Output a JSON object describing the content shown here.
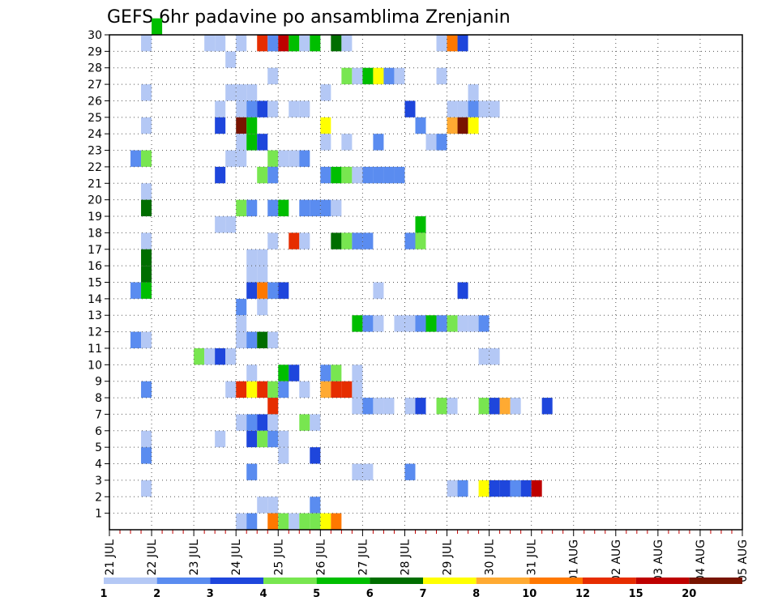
{
  "title": "GEFS 6hr padavine po ansamblima Zrenjanin",
  "chart_data": {
    "type": "heatmap",
    "title": "GEFS 6hr padavine po ansamblima Zrenjanin",
    "xlabel": "",
    "ylabel": "",
    "x_ticks": [
      "21 JUL",
      "22 JUL",
      "23 JUL",
      "24 JUL",
      "25 JUL",
      "26 JUL",
      "27 JUL",
      "28 JUL",
      "29 JUL",
      "30 JUL",
      "31 JUL",
      "01 AUG",
      "02 AUG",
      "03 AUG",
      "04 AUG",
      "05 AUG"
    ],
    "y_ticks": [
      "1",
      "2",
      "3",
      "4",
      "5",
      "6",
      "7",
      "8",
      "9",
      "10",
      "11",
      "12",
      "13",
      "14",
      "15",
      "16",
      "17",
      "18",
      "19",
      "20",
      "21",
      "22",
      "23",
      "24",
      "25",
      "26",
      "27",
      "28",
      "29",
      "30"
    ],
    "x_step": "6hr",
    "y_range": [
      0,
      30
    ],
    "grid": true,
    "colorbar": {
      "labels": [
        "1",
        "2",
        "3",
        "4",
        "5",
        "6",
        "7",
        "8",
        "10",
        "12",
        "15",
        "20"
      ],
      "colors": [
        "#b4c8f5",
        "#5a8cf0",
        "#1e46dc",
        "#78e650",
        "#00be00",
        "#006e00",
        "#ffff00",
        "#ffaa32",
        "#ff7800",
        "#e62d00",
        "#be0000",
        "#781400"
      ]
    },
    "cells": [
      [
        4,
        30,
        4
      ],
      [
        3,
        29,
        0
      ],
      [
        9,
        29,
        0
      ],
      [
        10,
        29,
        0
      ],
      [
        12,
        29,
        0
      ],
      [
        14,
        29,
        9
      ],
      [
        15,
        29,
        1
      ],
      [
        16,
        29,
        10
      ],
      [
        17,
        29,
        4
      ],
      [
        18,
        29,
        0
      ],
      [
        19,
        29,
        4
      ],
      [
        21,
        29,
        5
      ],
      [
        22,
        29,
        0
      ],
      [
        31,
        29,
        0
      ],
      [
        32,
        29,
        8
      ],
      [
        33,
        29,
        2
      ],
      [
        11,
        28,
        0
      ],
      [
        15,
        27,
        0
      ],
      [
        22,
        27,
        3
      ],
      [
        23,
        27,
        0
      ],
      [
        24,
        27,
        4
      ],
      [
        25,
        27,
        6
      ],
      [
        26,
        27,
        1
      ],
      [
        27,
        27,
        0
      ],
      [
        31,
        27,
        0
      ],
      [
        3,
        26,
        0
      ],
      [
        11,
        26,
        0
      ],
      [
        12,
        26,
        0
      ],
      [
        13,
        26,
        0
      ],
      [
        20,
        26,
        0
      ],
      [
        34,
        26,
        0
      ],
      [
        10,
        25,
        0
      ],
      [
        12,
        25,
        0
      ],
      [
        13,
        25,
        1
      ],
      [
        14,
        25,
        2
      ],
      [
        15,
        25,
        0
      ],
      [
        17,
        25,
        0
      ],
      [
        18,
        25,
        0
      ],
      [
        28,
        25,
        2
      ],
      [
        32,
        25,
        0
      ],
      [
        33,
        25,
        0
      ],
      [
        34,
        25,
        1
      ],
      [
        35,
        25,
        0
      ],
      [
        36,
        25,
        0
      ],
      [
        3,
        24,
        0
      ],
      [
        10,
        24,
        2
      ],
      [
        12,
        24,
        11
      ],
      [
        13,
        24,
        4
      ],
      [
        20,
        24,
        6
      ],
      [
        29,
        24,
        1
      ],
      [
        32,
        24,
        7
      ],
      [
        33,
        24,
        11
      ],
      [
        34,
        24,
        6
      ],
      [
        12,
        23,
        0
      ],
      [
        13,
        23,
        4
      ],
      [
        14,
        23,
        2
      ],
      [
        20,
        23,
        0
      ],
      [
        22,
        23,
        0
      ],
      [
        25,
        23,
        1
      ],
      [
        30,
        23,
        0
      ],
      [
        31,
        23,
        1
      ],
      [
        2,
        22,
        1
      ],
      [
        3,
        22,
        3
      ],
      [
        11,
        22,
        0
      ],
      [
        12,
        22,
        0
      ],
      [
        15,
        22,
        3
      ],
      [
        16,
        22,
        0
      ],
      [
        17,
        22,
        0
      ],
      [
        18,
        22,
        1
      ],
      [
        10,
        21,
        2
      ],
      [
        14,
        21,
        3
      ],
      [
        15,
        21,
        1
      ],
      [
        20,
        21,
        1
      ],
      [
        21,
        21,
        4
      ],
      [
        22,
        21,
        3
      ],
      [
        23,
        21,
        0
      ],
      [
        24,
        21,
        1
      ],
      [
        25,
        21,
        1
      ],
      [
        26,
        21,
        1
      ],
      [
        27,
        21,
        1
      ],
      [
        3,
        20,
        0
      ],
      [
        3,
        19,
        5
      ],
      [
        12,
        19,
        3
      ],
      [
        13,
        19,
        1
      ],
      [
        15,
        19,
        1
      ],
      [
        16,
        19,
        4
      ],
      [
        18,
        19,
        1
      ],
      [
        19,
        19,
        1
      ],
      [
        20,
        19,
        1
      ],
      [
        21,
        19,
        0
      ],
      [
        10,
        18,
        0
      ],
      [
        11,
        18,
        0
      ],
      [
        29,
        18,
        4
      ],
      [
        3,
        17,
        0
      ],
      [
        15,
        17,
        0
      ],
      [
        17,
        17,
        9
      ],
      [
        18,
        17,
        0
      ],
      [
        21,
        17,
        5
      ],
      [
        22,
        17,
        3
      ],
      [
        23,
        17,
        1
      ],
      [
        24,
        17,
        1
      ],
      [
        28,
        17,
        1
      ],
      [
        29,
        17,
        3
      ],
      [
        3,
        16,
        5
      ],
      [
        13,
        16,
        0
      ],
      [
        14,
        16,
        0
      ],
      [
        3,
        15,
        5
      ],
      [
        13,
        15,
        0
      ],
      [
        14,
        15,
        0
      ],
      [
        2,
        14,
        1
      ],
      [
        3,
        14,
        4
      ],
      [
        13,
        14,
        2
      ],
      [
        14,
        14,
        8
      ],
      [
        15,
        14,
        1
      ],
      [
        16,
        14,
        2
      ],
      [
        25,
        14,
        0
      ],
      [
        33,
        14,
        2
      ],
      [
        12,
        13,
        1
      ],
      [
        14,
        13,
        0
      ],
      [
        12,
        12,
        0
      ],
      [
        23,
        12,
        4
      ],
      [
        24,
        12,
        1
      ],
      [
        25,
        12,
        0
      ],
      [
        27,
        12,
        0
      ],
      [
        28,
        12,
        0
      ],
      [
        29,
        12,
        1
      ],
      [
        30,
        12,
        4
      ],
      [
        31,
        12,
        1
      ],
      [
        32,
        12,
        3
      ],
      [
        33,
        12,
        0
      ],
      [
        34,
        12,
        0
      ],
      [
        35,
        12,
        1
      ],
      [
        12,
        11,
        0
      ],
      [
        2,
        11,
        1
      ],
      [
        3,
        11,
        0
      ],
      [
        12,
        11,
        0
      ],
      [
        13,
        11,
        1
      ],
      [
        14,
        11,
        5
      ],
      [
        15,
        11,
        0
      ],
      [
        8,
        10,
        3
      ],
      [
        9,
        10,
        0
      ],
      [
        10,
        10,
        2
      ],
      [
        11,
        10,
        0
      ],
      [
        35,
        10,
        0
      ],
      [
        36,
        10,
        0
      ],
      [
        13,
        9,
        0
      ],
      [
        16,
        9,
        4
      ],
      [
        17,
        9,
        2
      ],
      [
        20,
        9,
        1
      ],
      [
        21,
        9,
        3
      ],
      [
        23,
        9,
        0
      ],
      [
        3,
        8,
        1
      ],
      [
        11,
        8,
        0
      ],
      [
        12,
        8,
        9
      ],
      [
        13,
        8,
        6
      ],
      [
        14,
        8,
        9
      ],
      [
        15,
        8,
        3
      ],
      [
        16,
        8,
        1
      ],
      [
        18,
        8,
        0
      ],
      [
        20,
        8,
        7
      ],
      [
        21,
        8,
        9
      ],
      [
        22,
        8,
        9
      ],
      [
        23,
        8,
        0
      ],
      [
        15,
        7,
        9
      ],
      [
        23,
        7,
        0
      ],
      [
        24,
        7,
        1
      ],
      [
        25,
        7,
        0
      ],
      [
        26,
        7,
        0
      ],
      [
        28,
        7,
        0
      ],
      [
        29,
        7,
        2
      ],
      [
        31,
        7,
        3
      ],
      [
        32,
        7,
        0
      ],
      [
        35,
        7,
        3
      ],
      [
        36,
        7,
        2
      ],
      [
        37,
        7,
        7
      ],
      [
        38,
        7,
        0
      ],
      [
        41,
        7,
        2
      ],
      [
        12,
        6,
        0
      ],
      [
        13,
        6,
        1
      ],
      [
        14,
        6,
        2
      ],
      [
        15,
        6,
        0
      ],
      [
        18,
        6,
        3
      ],
      [
        19,
        6,
        0
      ],
      [
        3,
        5,
        0
      ],
      [
        10,
        5,
        0
      ],
      [
        13,
        5,
        2
      ],
      [
        14,
        5,
        3
      ],
      [
        15,
        5,
        1
      ],
      [
        16,
        5,
        0
      ],
      [
        3,
        4,
        1
      ],
      [
        16,
        4,
        0
      ],
      [
        19,
        4,
        2
      ],
      [
        13,
        3,
        1
      ],
      [
        23,
        3,
        0
      ],
      [
        24,
        3,
        0
      ],
      [
        28,
        3,
        1
      ],
      [
        3,
        2,
        0
      ],
      [
        32,
        2,
        0
      ],
      [
        33,
        2,
        1
      ],
      [
        35,
        2,
        6
      ],
      [
        36,
        2,
        2
      ],
      [
        37,
        2,
        2
      ],
      [
        38,
        2,
        1
      ],
      [
        39,
        2,
        2
      ],
      [
        40,
        2,
        10
      ],
      [
        14,
        1,
        0
      ],
      [
        15,
        1,
        0
      ],
      [
        19,
        1,
        1
      ],
      [
        12,
        0,
        0
      ],
      [
        13,
        0,
        1
      ],
      [
        15,
        0,
        8
      ],
      [
        16,
        0,
        3
      ],
      [
        17,
        0,
        0
      ],
      [
        18,
        0,
        3
      ],
      [
        19,
        0,
        3
      ],
      [
        20,
        0,
        6
      ],
      [
        21,
        0,
        8
      ]
    ]
  }
}
